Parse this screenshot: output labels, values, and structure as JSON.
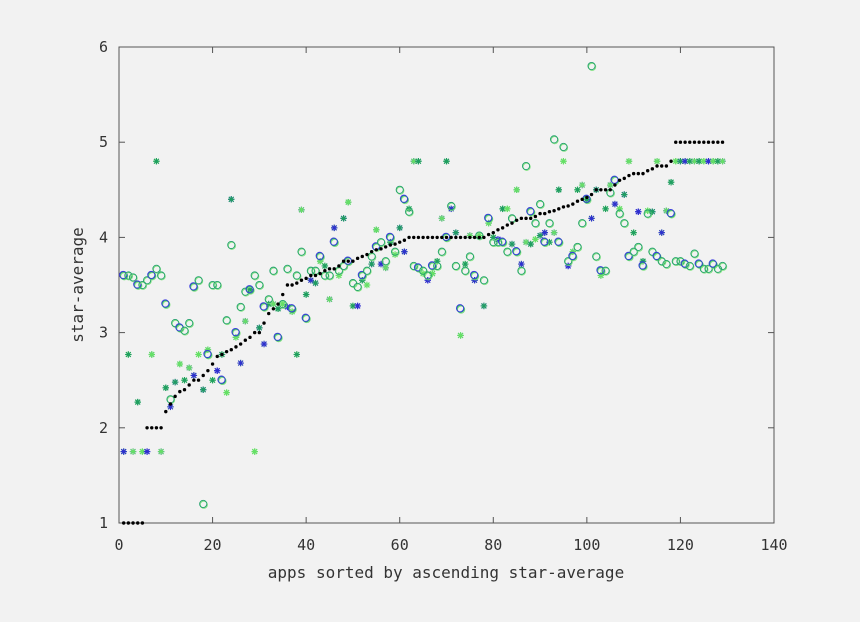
{
  "chart_data": {
    "type": "scatter",
    "xlabel": "apps sorted by ascending star-average",
    "ylabel": "star-average",
    "xlim": [
      0,
      140
    ],
    "ylim": [
      1,
      6
    ],
    "xticks": [
      "0",
      "20",
      "40",
      "60",
      "80",
      "100",
      "120",
      "140"
    ],
    "yticks": [
      "1",
      "2",
      "3",
      "4",
      "5",
      "6"
    ],
    "grid": false,
    "legend": "none",
    "colors": {
      "sorted_average": "#000000",
      "blue_circle": "#3a3ae0",
      "green_circle": "#22a06b",
      "lightgreen_circle": "#7de27d",
      "blue_star": "#2f2fcf",
      "green_star": "#1f9f5f",
      "lightgreen_star": "#66e066"
    },
    "series": [
      {
        "key": "sorted_average",
        "marker": "dot",
        "x": [
          1,
          2,
          3,
          4,
          5,
          6,
          7,
          8,
          9,
          10,
          11,
          12,
          13,
          14,
          15,
          16,
          17,
          18,
          19,
          20,
          21,
          22,
          23,
          24,
          25,
          26,
          27,
          28,
          29,
          30,
          31,
          32,
          33,
          34,
          35,
          36,
          37,
          38,
          39,
          40,
          41,
          42,
          43,
          44,
          45,
          46,
          47,
          48,
          49,
          50,
          51,
          52,
          53,
          54,
          55,
          56,
          57,
          58,
          59,
          60,
          61,
          62,
          63,
          64,
          65,
          66,
          67,
          68,
          69,
          70,
          71,
          72,
          73,
          74,
          75,
          76,
          77,
          78,
          79,
          80,
          81,
          82,
          83,
          84,
          85,
          86,
          87,
          88,
          89,
          90,
          91,
          92,
          93,
          94,
          95,
          96,
          97,
          98,
          99,
          100,
          101,
          102,
          103,
          104,
          105,
          106,
          107,
          108,
          109,
          110,
          111,
          112,
          113,
          114,
          115,
          116,
          117,
          118,
          119,
          120,
          121,
          122,
          123,
          124,
          125,
          126,
          127,
          128,
          129
        ],
        "y": [
          1,
          1,
          1,
          1,
          1,
          2,
          2,
          2,
          2,
          2.17,
          2.25,
          2.33,
          2.38,
          2.4,
          2.45,
          2.5,
          2.5,
          2.55,
          2.6,
          2.67,
          2.75,
          2.77,
          2.8,
          2.82,
          2.85,
          2.88,
          2.92,
          2.95,
          3,
          3,
          3.1,
          3.2,
          3.25,
          3.3,
          3.4,
          3.5,
          3.5,
          3.52,
          3.55,
          3.57,
          3.6,
          3.6,
          3.62,
          3.65,
          3.67,
          3.67,
          3.7,
          3.75,
          3.75,
          3.75,
          3.78,
          3.8,
          3.82,
          3.85,
          3.87,
          3.88,
          3.9,
          3.92,
          3.93,
          3.95,
          3.97,
          4,
          4,
          4,
          4,
          4,
          4,
          4,
          4,
          4,
          4,
          4,
          4,
          4,
          4,
          4,
          4,
          4,
          4.03,
          4.05,
          4.08,
          4.1,
          4.13,
          4.15,
          4.18,
          4.2,
          4.2,
          4.2,
          4.22,
          4.25,
          4.25,
          4.27,
          4.28,
          4.3,
          4.32,
          4.33,
          4.35,
          4.38,
          4.4,
          4.42,
          4.45,
          4.5,
          4.5,
          4.5,
          4.5,
          4.55,
          4.6,
          4.62,
          4.65,
          4.67,
          4.67,
          4.67,
          4.7,
          4.72,
          4.75,
          4.75,
          4.75,
          4.8,
          5,
          5,
          5,
          5,
          5,
          5,
          5,
          5,
          5,
          5,
          5
        ]
      },
      {
        "key": "circles",
        "marker": "circle",
        "x": [
          1,
          2,
          3,
          4,
          5,
          6,
          7,
          8,
          9,
          10,
          11,
          12,
          13,
          14,
          15,
          16,
          17,
          18,
          19,
          20,
          21,
          22,
          23,
          24,
          25,
          26,
          27,
          28,
          29,
          30,
          31,
          32,
          33,
          34,
          35,
          36,
          37,
          38,
          39,
          40,
          41,
          42,
          43,
          44,
          45,
          46,
          47,
          48,
          49,
          50,
          51,
          52,
          53,
          54,
          55,
          56,
          57,
          58,
          59,
          60,
          61,
          62,
          63,
          64,
          65,
          66,
          67,
          68,
          69,
          70,
          71,
          72,
          73,
          74,
          75,
          76,
          77,
          78,
          79,
          80,
          81,
          82,
          83,
          84,
          85,
          86,
          87,
          88,
          89,
          90,
          91,
          92,
          93,
          94,
          95,
          96,
          97,
          98,
          99,
          100,
          101,
          102,
          103,
          104,
          105,
          106,
          107,
          108,
          109,
          110,
          111,
          112,
          113,
          114,
          115,
          116,
          117,
          118,
          119,
          120,
          121,
          122,
          123,
          124,
          125,
          126,
          127,
          128,
          129
        ],
        "y": [
          3.6,
          3.6,
          3.58,
          3.5,
          3.5,
          3.55,
          3.6,
          3.67,
          3.6,
          3.3,
          2.3,
          3.1,
          3.05,
          3.02,
          3.1,
          3.48,
          3.55,
          1.2,
          2.77,
          3.5,
          3.5,
          2.5,
          3.13,
          3.92,
          3,
          3.27,
          3.43,
          3.45,
          3.6,
          3.5,
          3.27,
          3.35,
          3.65,
          2.95,
          3.3,
          3.67,
          3.25,
          3.6,
          3.85,
          3.15,
          3.65,
          3.65,
          3.8,
          3.6,
          3.6,
          3.95,
          3.65,
          3.7,
          3.75,
          3.52,
          3.48,
          3.6,
          3.65,
          3.8,
          3.9,
          3.95,
          3.75,
          4,
          3.85,
          4.5,
          4.4,
          4.27,
          3.7,
          3.68,
          3.65,
          3.6,
          3.7,
          3.7,
          3.85,
          4,
          4.33,
          3.7,
          3.25,
          3.65,
          3.8,
          3.6,
          4.02,
          3.55,
          4.2,
          3.95,
          3.95,
          3.95,
          3.85,
          4.2,
          3.85,
          3.65,
          4.75,
          4.27,
          4.15,
          4.35,
          3.95,
          4.15,
          5.03,
          3.95,
          4.95,
          3.75,
          3.8,
          3.9,
          4.15,
          4.4,
          5.8,
          3.8,
          3.65,
          3.65,
          4.47,
          4.6,
          4.25,
          4.15,
          3.8,
          3.85,
          3.9,
          3.7,
          4.25,
          3.85,
          3.8,
          3.75,
          3.72,
          4.25,
          3.75,
          3.75,
          3.72,
          3.7,
          3.83,
          3.72,
          3.67,
          3.67,
          3.72,
          3.67,
          3.7
        ]
      },
      {
        "key": "stars",
        "marker": "star",
        "x": [
          1,
          2,
          3,
          4,
          5,
          6,
          7,
          8,
          9,
          10,
          11,
          12,
          13,
          14,
          15,
          16,
          17,
          18,
          19,
          20,
          21,
          22,
          23,
          24,
          25,
          26,
          27,
          28,
          29,
          30,
          31,
          32,
          33,
          34,
          35,
          36,
          37,
          38,
          39,
          40,
          41,
          42,
          43,
          44,
          45,
          46,
          47,
          48,
          49,
          50,
          51,
          52,
          53,
          54,
          55,
          56,
          57,
          58,
          59,
          60,
          61,
          62,
          63,
          64,
          65,
          66,
          67,
          68,
          69,
          70,
          71,
          72,
          73,
          74,
          75,
          76,
          77,
          78,
          79,
          80,
          81,
          82,
          83,
          84,
          85,
          86,
          87,
          88,
          89,
          90,
          91,
          92,
          93,
          94,
          95,
          96,
          97,
          98,
          99,
          100,
          101,
          102,
          103,
          104,
          105,
          106,
          107,
          108,
          109,
          110,
          111,
          112,
          113,
          114,
          115,
          116,
          117,
          118,
          119,
          120,
          121,
          122,
          123,
          124,
          125,
          126,
          127,
          128,
          129
        ],
        "y": [
          1.75,
          2.77,
          1.75,
          2.27,
          1.75,
          1.75,
          2.77,
          4.8,
          1.75,
          2.42,
          2.22,
          2.48,
          2.67,
          2.5,
          2.63,
          2.55,
          2.77,
          2.4,
          2.82,
          2.5,
          2.6,
          2.77,
          2.37,
          4.4,
          2.95,
          2.68,
          3.12,
          3.45,
          1.75,
          3.05,
          2.88,
          3.3,
          3.3,
          3.25,
          3.3,
          3.27,
          3.22,
          2.77,
          4.29,
          3.4,
          3.55,
          3.52,
          3.75,
          3.7,
          3.35,
          4.1,
          3.6,
          4.2,
          4.37,
          3.28,
          3.28,
          3.55,
          3.5,
          3.72,
          4.08,
          3.72,
          3.68,
          3.95,
          3.82,
          4.1,
          3.85,
          4.3,
          4.8,
          4.8,
          3.62,
          3.55,
          3.62,
          3.75,
          4.2,
          4.8,
          4.3,
          4.05,
          2.97,
          3.72,
          4.02,
          3.55,
          4.02,
          3.28,
          4.15,
          4,
          3.98,
          4.3,
          4.3,
          3.93,
          4.5,
          3.72,
          3.95,
          3.93,
          3.98,
          4.02,
          4.05,
          3.95,
          4.05,
          4.5,
          4.8,
          3.7,
          3.85,
          4.5,
          4.55,
          4.4,
          4.2,
          4.5,
          3.6,
          4.3,
          4.55,
          4.35,
          4.3,
          4.45,
          4.8,
          4.05,
          4.27,
          3.75,
          4.28,
          4.27,
          4.8,
          4.05,
          4.28,
          4.58,
          4.8,
          4.8,
          4.8,
          4.8,
          4.8,
          4.8,
          4.8,
          4.8,
          4.8,
          4.8,
          4.8
        ]
      }
    ]
  }
}
